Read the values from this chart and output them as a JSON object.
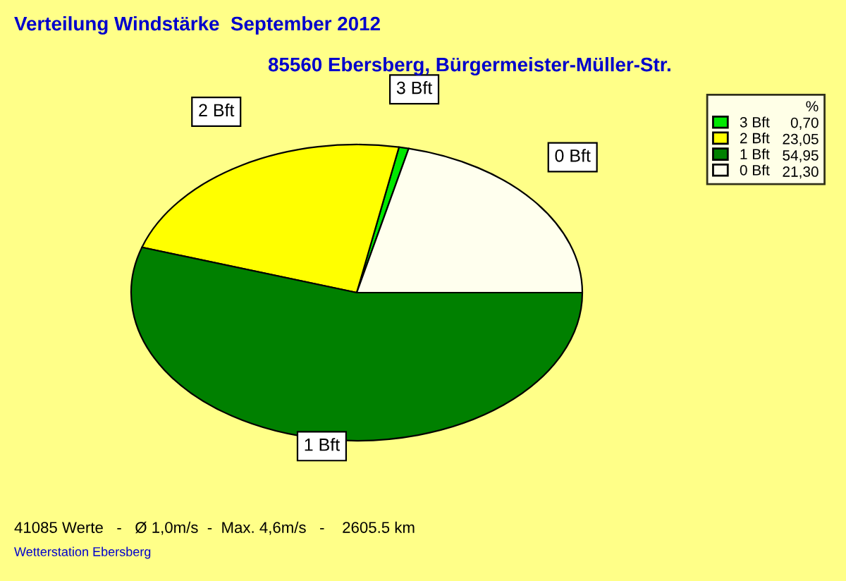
{
  "chart_data": {
    "type": "pie",
    "title": "Verteilung Windstärke  September 2012",
    "subtitle": "85560 Ebersberg, Bürgermeister-Müller-Str.",
    "categories": [
      "3 Bft",
      "2 Bft",
      "1 Bft",
      "0 Bft"
    ],
    "values": [
      0.7,
      23.05,
      54.95,
      21.3
    ],
    "value_labels": [
      "0,70",
      "23,05",
      "54,95",
      "21,30"
    ],
    "colors": [
      "#00e800",
      "#ffff00",
      "#008000",
      "#ffffee"
    ],
    "legend": "top right",
    "legend_title": "%",
    "annotations": [
      "41085 Werte   -   Ø 1,0m/s  -  Max. 4,6m/s   -    2605.5 km",
      "Wetterstation Ebersberg"
    ]
  }
}
